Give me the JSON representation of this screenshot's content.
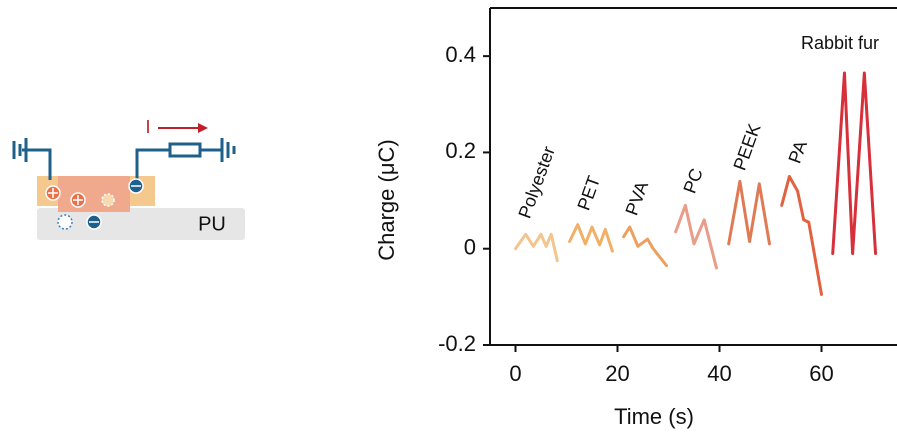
{
  "schematic": {
    "current_label": "I",
    "substrate_label": "PU"
  },
  "chart_data": {
    "type": "line",
    "x_label": "Time (s)",
    "y_label": "Charge (μC)",
    "xlim": [
      -5,
      75
    ],
    "xticks": [
      0,
      20,
      40,
      60
    ],
    "ylim": [
      -0.2,
      0.5
    ],
    "yticks": [
      -0.2,
      0,
      0.2,
      0.4
    ],
    "series": [
      {
        "name": "Polyester",
        "color": "#f3c48e",
        "x": [
          0,
          2,
          3.5,
          5,
          6,
          7,
          8.2
        ],
        "values": [
          0,
          0.03,
          0.005,
          0.03,
          0.005,
          0.03,
          -0.025
        ]
      },
      {
        "name": "PET",
        "color": "#f1b067",
        "x": [
          10.6,
          12.2,
          13.7,
          15,
          16.5,
          17.6,
          19
        ],
        "values": [
          0.015,
          0.05,
          0.01,
          0.045,
          0.008,
          0.04,
          -0.005
        ]
      },
      {
        "name": "PVA",
        "color": "#eca05f",
        "x": [
          21.2,
          22.4,
          24,
          25.9,
          27,
          29.6
        ],
        "values": [
          0.025,
          0.045,
          0.005,
          0.02,
          0,
          -0.035
        ]
      },
      {
        "name": "PC",
        "color": "#eb9c88",
        "x": [
          31.4,
          33.3,
          35,
          37,
          39.4
        ],
        "values": [
          0.035,
          0.09,
          0.01,
          0.06,
          -0.04
        ]
      },
      {
        "name": "PEEK",
        "color": "#e07a55",
        "x": [
          41.8,
          44,
          45.9,
          47.8,
          49.8
        ],
        "values": [
          0.01,
          0.14,
          0.015,
          0.135,
          0.01
        ]
      },
      {
        "name": "PA",
        "color": "#e0623f",
        "x": [
          52.2,
          53.7,
          55.3,
          56.5,
          57.5,
          60
        ],
        "values": [
          0.09,
          0.15,
          0.12,
          0.06,
          0.055,
          -0.095
        ]
      },
      {
        "name": "Rabbit fur",
        "color": "#d6303b",
        "x": [
          62.2,
          64.5,
          66.1,
          68.4,
          70.6
        ],
        "values": [
          -0.01,
          0.365,
          -0.01,
          0.365,
          -0.01
        ]
      }
    ]
  }
}
